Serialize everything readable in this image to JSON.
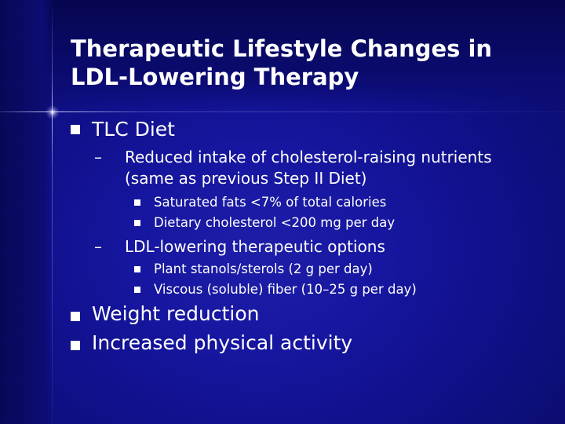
{
  "slide": {
    "title_line1": "Therapeutic Lifestyle Changes in",
    "title_line2": "LDL-Lowering Therapy",
    "bullets": {
      "tlc_diet": "TLC Diet",
      "reduced_intake_line1": "Reduced intake of cholesterol-raising nutrients",
      "reduced_intake_line2": "(same as previous Step II Diet)",
      "saturated_fats": "Saturated fats <7% of total calories",
      "dietary_cholesterol": "Dietary cholesterol <200 mg per day",
      "ldl_options": "LDL-lowering therapeutic options",
      "plant_stanols": "Plant stanols/sterols (2 g per day)",
      "viscous_fiber": "Viscous (soluble) fiber (10–25 g per day)",
      "weight_reduction": "Weight reduction",
      "physical_activity": "Increased physical activity"
    },
    "dash_glyph": "–",
    "colors": {
      "background": "#1616a0",
      "text": "#ffffff"
    }
  }
}
